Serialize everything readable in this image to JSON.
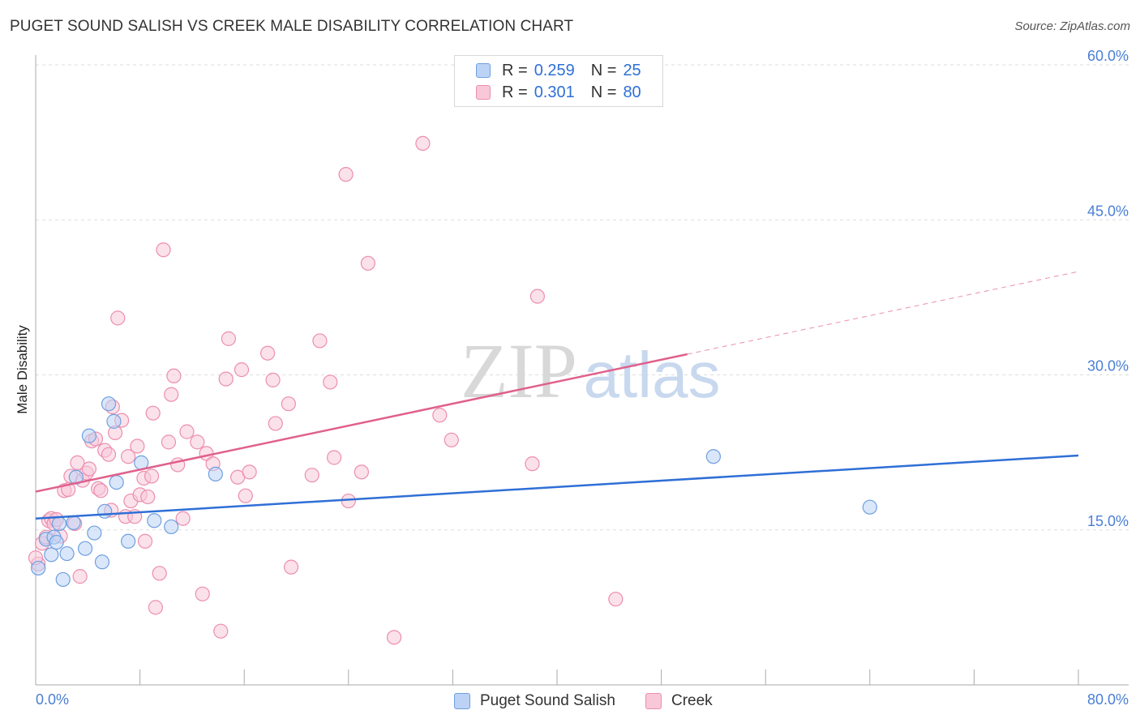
{
  "title": "PUGET SOUND SALISH VS CREEK MALE DISABILITY CORRELATION CHART",
  "source": "Source: ZipAtlas.com",
  "watermark": {
    "zip": "ZIP",
    "atlas": "atlas"
  },
  "legend": {
    "r_label": "R =",
    "n_label": "N =",
    "series": [
      {
        "name": "Puget Sound Salish",
        "r": "0.259",
        "n": "25"
      },
      {
        "name": "Creek",
        "r": "0.301",
        "n": "80"
      }
    ]
  },
  "colors": {
    "blue_fill": "#bcd3f5",
    "blue_stroke": "#6f9fe0",
    "blue_line": "#2f6fd6",
    "pink_fill": "#f8c8d8",
    "pink_stroke": "#ec8eae",
    "pink_line": "#e0608c",
    "grid": "#dddddd",
    "tick_text": "#4a7fd4"
  },
  "chart_data": {
    "type": "scatter",
    "title": "PUGET SOUND SALISH VS CREEK MALE DISABILITY CORRELATION CHART",
    "xlabel": "",
    "ylabel": "Male Disability",
    "xlim": [
      0,
      80
    ],
    "ylim": [
      0,
      60
    ],
    "x_tick_labels": [
      "0.0%",
      "80.0%"
    ],
    "y_ticks": [
      15,
      30,
      45,
      60
    ],
    "y_tick_labels": [
      "15.0%",
      "30.0%",
      "45.0%",
      "60.0%"
    ],
    "series": [
      {
        "name": "Puget Sound Salish",
        "color": "blue",
        "points": [
          [
            0.2,
            11.3
          ],
          [
            0.8,
            14.1
          ],
          [
            1.2,
            12.6
          ],
          [
            1.4,
            14.3
          ],
          [
            1.6,
            13.8
          ],
          [
            1.8,
            15.6
          ],
          [
            2.1,
            10.2
          ],
          [
            2.4,
            12.7
          ],
          [
            2.9,
            15.7
          ],
          [
            3.1,
            20.1
          ],
          [
            3.8,
            13.2
          ],
          [
            4.1,
            24.1
          ],
          [
            4.5,
            14.7
          ],
          [
            5.1,
            11.9
          ],
          [
            5.3,
            16.8
          ],
          [
            5.6,
            27.2
          ],
          [
            6.0,
            25.5
          ],
          [
            6.2,
            19.6
          ],
          [
            7.1,
            13.9
          ],
          [
            8.1,
            21.5
          ],
          [
            9.1,
            15.9
          ],
          [
            10.4,
            15.3
          ],
          [
            13.8,
            20.4
          ],
          [
            52.0,
            22.1
          ],
          [
            64.0,
            17.2
          ]
        ],
        "trend": {
          "x": [
            0,
            80
          ],
          "y": [
            16.1,
            22.2
          ]
        }
      },
      {
        "name": "Creek",
        "color": "pink",
        "points": [
          [
            0.2,
            11.7
          ],
          [
            0.5,
            13.7
          ],
          [
            0.8,
            14.3
          ],
          [
            1.0,
            15.9
          ],
          [
            1.2,
            16.1
          ],
          [
            1.4,
            15.6
          ],
          [
            1.6,
            16.0
          ],
          [
            1.9,
            14.4
          ],
          [
            2.2,
            18.8
          ],
          [
            2.5,
            18.9
          ],
          [
            2.7,
            20.2
          ],
          [
            3.0,
            15.6
          ],
          [
            3.2,
            21.5
          ],
          [
            3.4,
            10.5
          ],
          [
            3.6,
            19.8
          ],
          [
            3.9,
            20.5
          ],
          [
            4.1,
            20.9
          ],
          [
            4.3,
            23.6
          ],
          [
            4.6,
            23.8
          ],
          [
            4.8,
            19.0
          ],
          [
            5.0,
            18.8
          ],
          [
            5.3,
            22.7
          ],
          [
            5.6,
            22.3
          ],
          [
            5.8,
            16.9
          ],
          [
            5.9,
            26.9
          ],
          [
            6.1,
            24.4
          ],
          [
            6.3,
            35.5
          ],
          [
            6.6,
            25.6
          ],
          [
            6.9,
            16.3
          ],
          [
            7.1,
            22.1
          ],
          [
            7.3,
            17.8
          ],
          [
            7.6,
            16.3
          ],
          [
            7.8,
            23.1
          ],
          [
            8.0,
            18.4
          ],
          [
            8.3,
            20.0
          ],
          [
            8.4,
            13.9
          ],
          [
            8.6,
            18.2
          ],
          [
            8.9,
            20.2
          ],
          [
            9.0,
            26.3
          ],
          [
            9.2,
            7.5
          ],
          [
            9.5,
            10.8
          ],
          [
            9.8,
            42.1
          ],
          [
            10.2,
            23.5
          ],
          [
            10.4,
            28.1
          ],
          [
            10.6,
            29.9
          ],
          [
            10.9,
            21.3
          ],
          [
            11.3,
            16.1
          ],
          [
            11.6,
            24.5
          ],
          [
            12.4,
            23.5
          ],
          [
            12.8,
            8.8
          ],
          [
            13.1,
            22.4
          ],
          [
            13.6,
            21.4
          ],
          [
            14.2,
            5.2
          ],
          [
            14.6,
            29.6
          ],
          [
            14.8,
            33.5
          ],
          [
            15.5,
            20.1
          ],
          [
            15.8,
            30.5
          ],
          [
            16.1,
            18.3
          ],
          [
            16.4,
            20.6
          ],
          [
            17.8,
            32.1
          ],
          [
            18.2,
            29.5
          ],
          [
            18.4,
            25.3
          ],
          [
            19.4,
            27.2
          ],
          [
            19.6,
            11.4
          ],
          [
            21.2,
            20.3
          ],
          [
            21.8,
            33.3
          ],
          [
            22.6,
            29.3
          ],
          [
            22.9,
            22.0
          ],
          [
            23.8,
            49.4
          ],
          [
            24.0,
            17.8
          ],
          [
            25.0,
            20.6
          ],
          [
            25.5,
            40.8
          ],
          [
            27.5,
            4.6
          ],
          [
            29.7,
            52.4
          ],
          [
            31.0,
            26.1
          ],
          [
            31.9,
            23.7
          ],
          [
            38.1,
            21.4
          ],
          [
            38.5,
            37.6
          ],
          [
            44.5,
            8.3
          ],
          [
            0.0,
            12.3
          ]
        ],
        "trend": {
          "x": [
            0,
            50
          ],
          "y": [
            18.7,
            32.0
          ]
        },
        "trend_extension": {
          "x": [
            50,
            80
          ],
          "y": [
            32.0,
            40.0
          ]
        }
      }
    ]
  },
  "bottom_legend": [
    "Puget Sound Salish",
    "Creek"
  ]
}
